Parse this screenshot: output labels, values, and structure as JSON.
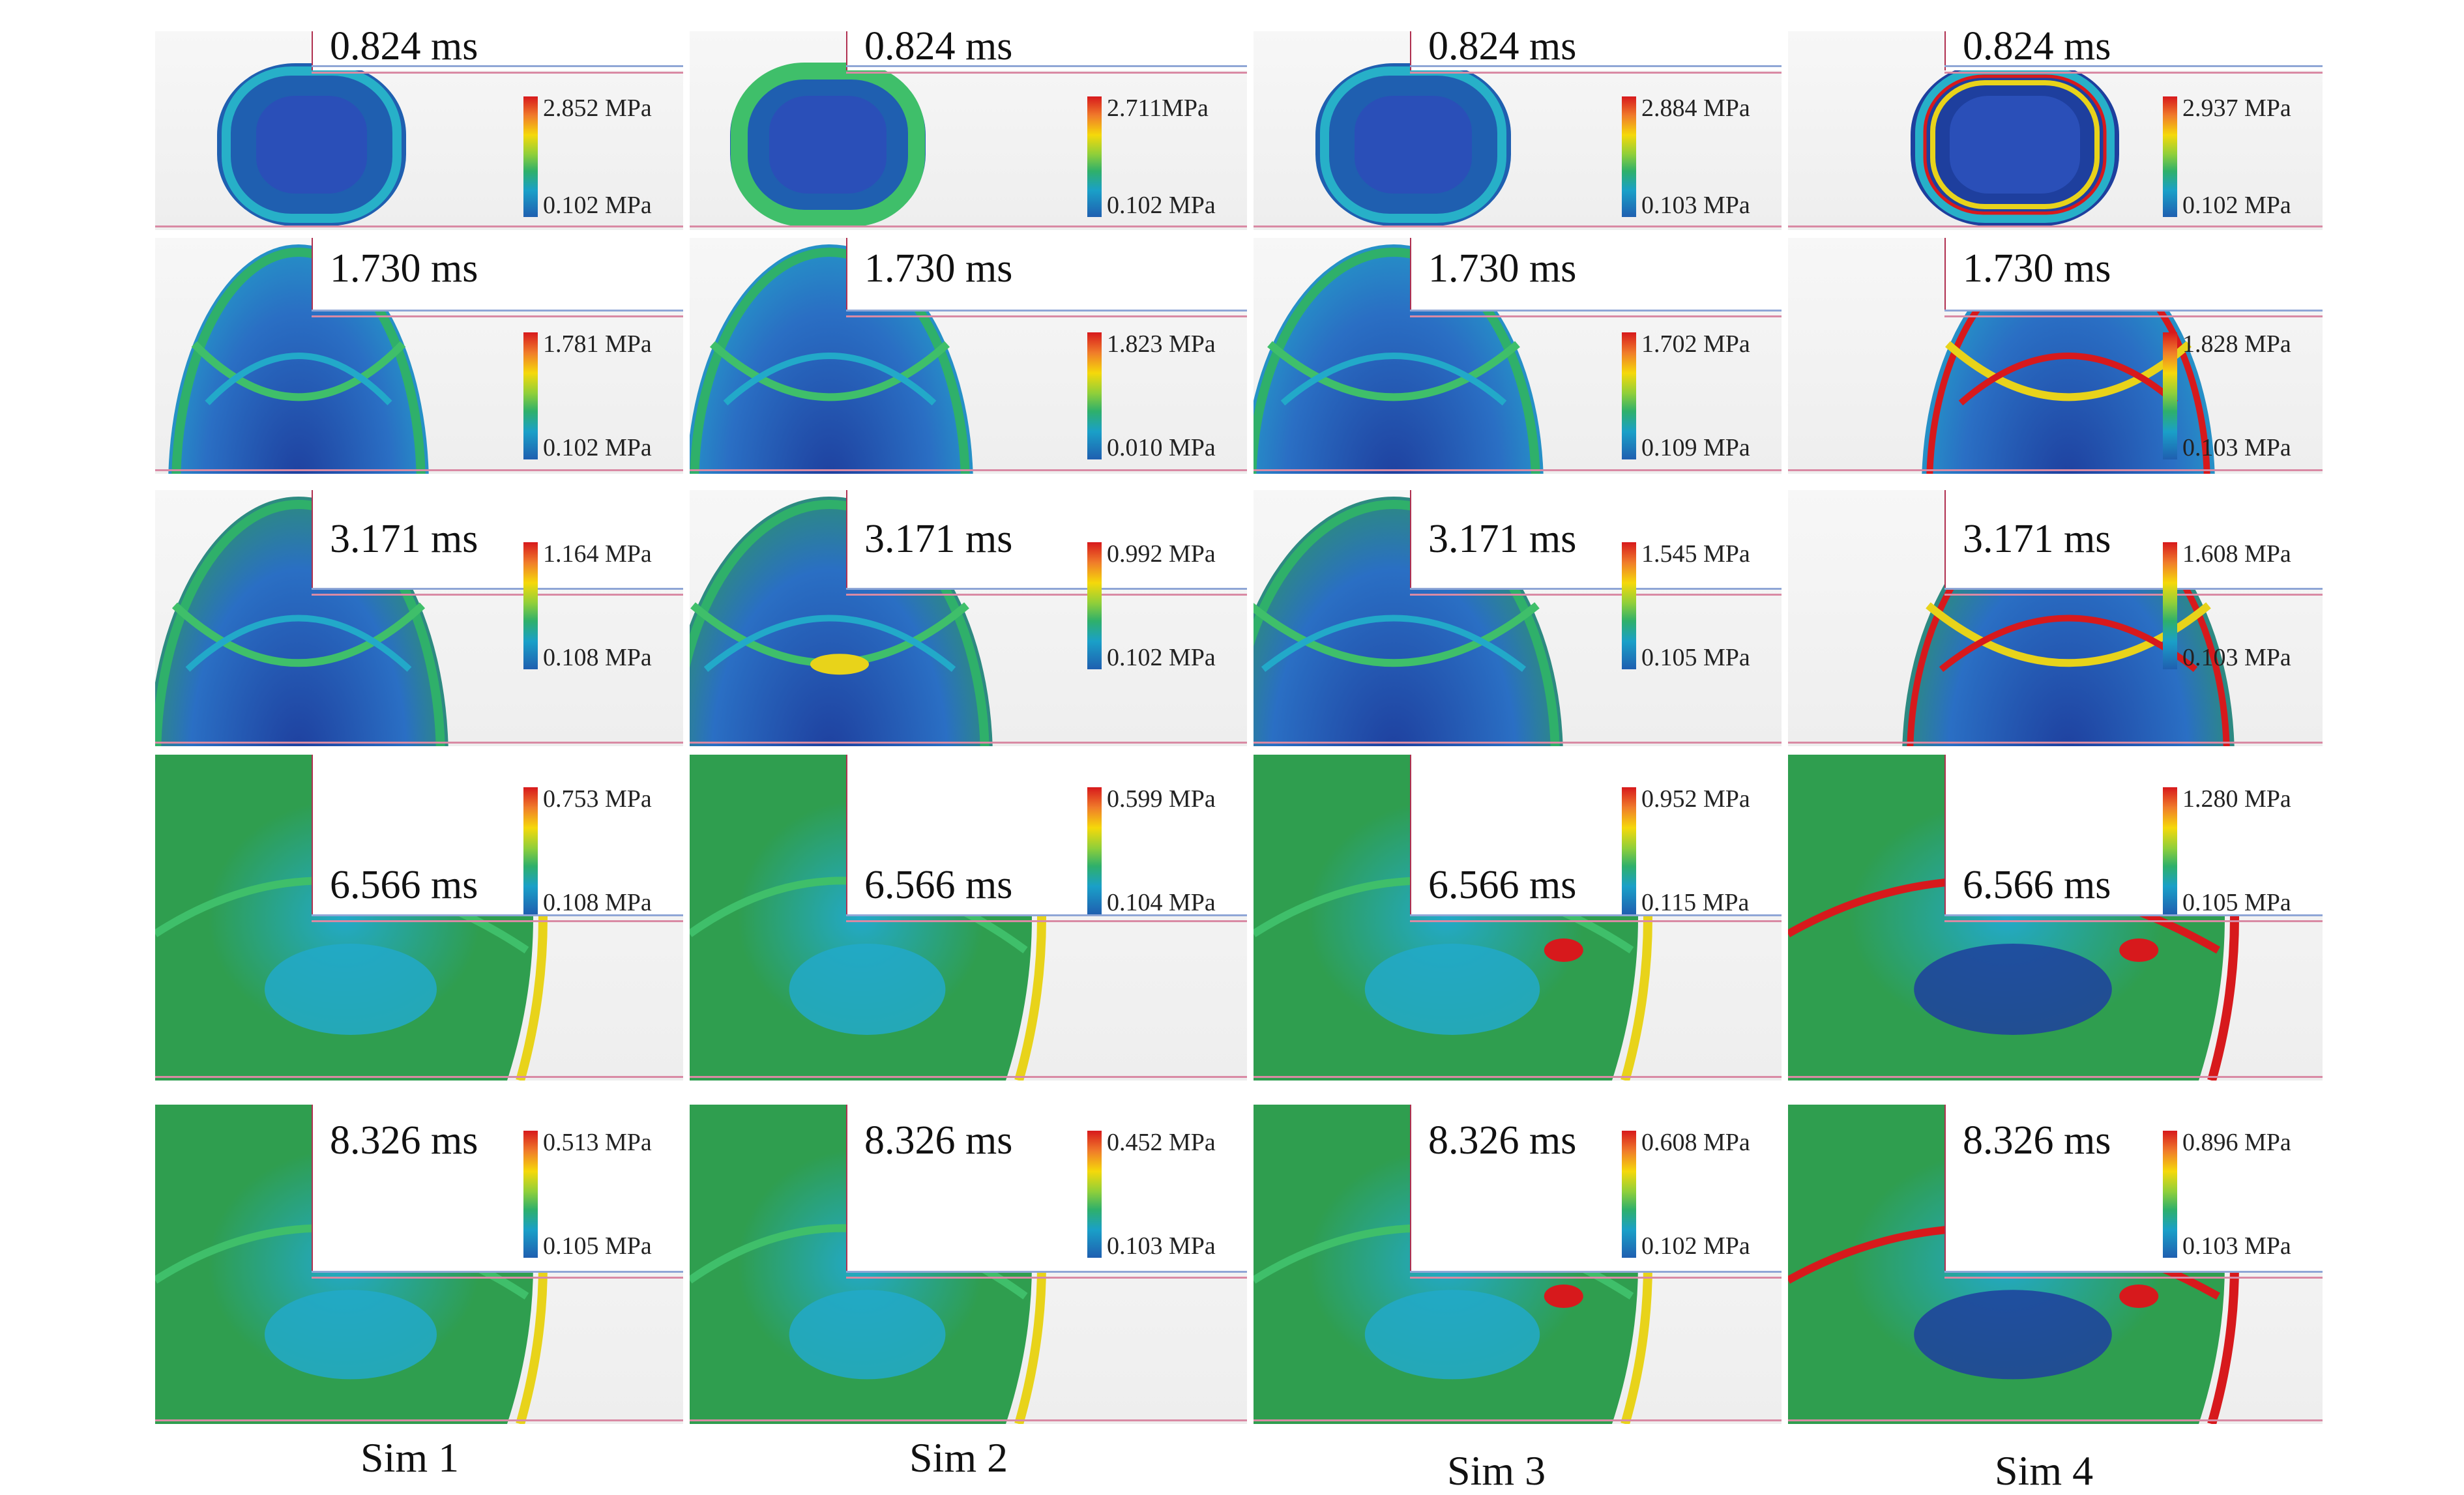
{
  "columns": [
    {
      "label": "Sim 1",
      "accent": "#2f9e5a",
      "panels": [
        {
          "time": "0.824 ms",
          "max": "2.852 MPa",
          "min": "0.102 MPa"
        },
        {
          "time": "1.730 ms",
          "max": "1.781 MPa",
          "min": "0.102 MPa"
        },
        {
          "time": "3.171 ms",
          "max": "1.164 MPa",
          "min": "0.108 MPa"
        },
        {
          "time": "6.566 ms",
          "max": "0.753 MPa",
          "min": "0.108 MPa"
        },
        {
          "time": "8.326 ms",
          "max": "0.513 MPa",
          "min": "0.105 MPa"
        }
      ]
    },
    {
      "label": "Sim 2",
      "accent": "#36a85e",
      "panels": [
        {
          "time": "0.824 ms",
          "max": "2.711MPa",
          "min": "0.102 MPa"
        },
        {
          "time": "1.730 ms",
          "max": "1.823 MPa",
          "min": "0.010  MPa"
        },
        {
          "time": "3.171 ms",
          "max": "0.992 MPa",
          "min": "0.102 MPa"
        },
        {
          "time": "6.566 ms",
          "max": "0.599 MPa",
          "min": "0.104 MPa"
        },
        {
          "time": "8.326 ms",
          "max": "0.452 MPa",
          "min": "0.103 MPa"
        }
      ]
    },
    {
      "label": "Sim 3",
      "accent": "#2d9b63",
      "panels": [
        {
          "time": "0.824 ms",
          "max": "2.884 MPa",
          "min": "0.103 MPa"
        },
        {
          "time": "1.730 ms",
          "max": "1.702 MPa",
          "min": "0.109 MPa"
        },
        {
          "time": "3.171 ms",
          "max": "1.545 MPa",
          "min": "0.105 MPa"
        },
        {
          "time": "6.566 ms",
          "max": "0.952 MPa",
          "min": "0.115 MPa"
        },
        {
          "time": "8.326 ms",
          "max": "0.608 MPa",
          "min": "0.102 MPa"
        }
      ]
    },
    {
      "label": "Sim 4",
      "accent": "#e8432a",
      "panels": [
        {
          "time": "0.824 ms",
          "max": "2.937 MPa",
          "min": "0.102 MPa"
        },
        {
          "time": "1.730 ms",
          "max": "1.828 MPa",
          "min": "0.103 MPa"
        },
        {
          "time": "3.171 ms",
          "max": "1.608 MPa",
          "min": "0.103 MPa"
        },
        {
          "time": "6.566 ms",
          "max": "1.280 MPa",
          "min": "0.105 MPa"
        },
        {
          "time": "8.326 ms",
          "max": "0.896 MPa",
          "min": "0.103 MPa"
        }
      ]
    }
  ],
  "colors": {
    "deep_blue": "#1e3f9e",
    "mid_blue": "#2a6fc4",
    "cyan": "#22a9c9",
    "green": "#2f9e4f",
    "yellow": "#e8d31a",
    "red": "#d7191c"
  }
}
